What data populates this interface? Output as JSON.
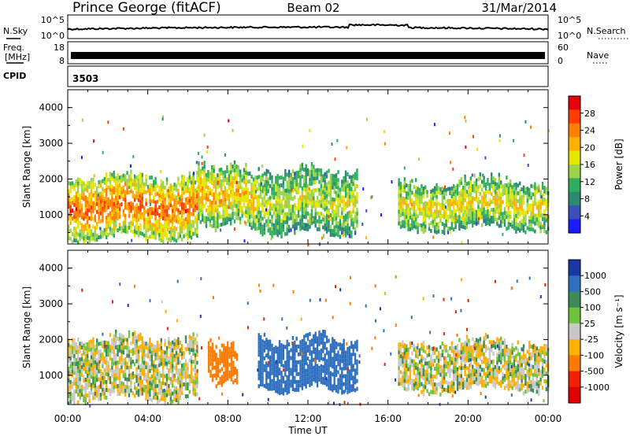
{
  "header": {
    "station": "Prince George (fitACF)",
    "beam": "Beam 02",
    "date": "31/Mar/2014"
  },
  "panels": {
    "nsky": {
      "label": "N.Sky",
      "right_label": "N.Search",
      "ticks_left": [
        "10^5",
        "10^0"
      ],
      "ticks_right": [
        "10^5",
        "10^0"
      ]
    },
    "freq": {
      "label_line1": "Freq.",
      "label_line2": "[MHz]",
      "right_label": "Nave",
      "ticks_left": [
        "18",
        "8"
      ],
      "ticks_right": [
        "60",
        "0"
      ]
    },
    "cpid": {
      "label": "CPID",
      "value": "3503"
    }
  },
  "colorbars": {
    "power": {
      "title": "Power [dB]",
      "ticks": [
        "28",
        "24",
        "20",
        "16",
        "12",
        "8",
        "4"
      ],
      "colors": [
        "#e8000b",
        "#ff3c00",
        "#ff7f00",
        "#ffb000",
        "#e6e600",
        "#9bd44a",
        "#2fae5e",
        "#2c8a72",
        "#3a4fbd",
        "#1b1bff"
      ]
    },
    "velocity": {
      "title": "Velocity [m s⁻¹]",
      "ticks": [
        "1000",
        "500",
        "100",
        "25",
        "-25",
        "-100",
        "-500",
        "-1000"
      ],
      "colors": [
        "#1a37a8",
        "#2e6fbf",
        "#3d8c57",
        "#6fc43b",
        "#c8c8c8",
        "#ffb000",
        "#ff7a00",
        "#f02000",
        "#e00000"
      ]
    }
  },
  "chart_data": [
    {
      "type": "heatmap",
      "title": "",
      "parameter": "Power",
      "units": "dB",
      "xlabel": "Time UT",
      "ylabel": "Slant Range [km]",
      "xlim": [
        "00:00",
        "24:00"
      ],
      "ylim": [
        180,
        4500
      ],
      "x_ticks": [
        "00:00",
        "04:00",
        "08:00",
        "12:00",
        "16:00",
        "20:00",
        "00:00"
      ],
      "y_ticks": [
        1000,
        2000,
        3000,
        4000
      ],
      "color_range": [
        0,
        30
      ],
      "echo_regions": [
        {
          "t_start": 0.0,
          "t_end": 6.5,
          "r_low": 450,
          "r_high": 2100,
          "power": 22
        },
        {
          "t_start": 6.5,
          "t_end": 9.5,
          "r_low": 800,
          "r_high": 2400,
          "power": 18
        },
        {
          "t_start": 9.5,
          "t_end": 14.5,
          "r_low": 600,
          "r_high": 2300,
          "power": 14
        },
        {
          "t_start": 16.5,
          "t_end": 24.0,
          "r_low": 700,
          "r_high": 2000,
          "power": 16
        }
      ]
    },
    {
      "type": "heatmap",
      "title": "",
      "parameter": "Velocity",
      "units": "m s-1",
      "xlabel": "Time UT",
      "ylabel": "Slant Range [km]",
      "xlim": [
        "00:00",
        "24:00"
      ],
      "ylim": [
        180,
        4500
      ],
      "x_ticks": [
        "00:00",
        "04:00",
        "08:00",
        "12:00",
        "16:00",
        "20:00",
        "00:00"
      ],
      "y_ticks": [
        1000,
        2000,
        3000,
        4000
      ],
      "color_range": [
        -1000,
        1000
      ],
      "echo_regions": [
        {
          "t_start": 0.0,
          "t_end": 6.5,
          "r_low": 450,
          "r_high": 2100,
          "velocity": 0
        },
        {
          "t_start": 7.0,
          "t_end": 8.5,
          "r_low": 900,
          "r_high": 1900,
          "velocity": -300
        },
        {
          "t_start": 9.5,
          "t_end": 14.5,
          "r_low": 700,
          "r_high": 2100,
          "velocity": 200
        },
        {
          "t_start": 16.5,
          "t_end": 24.0,
          "r_low": 700,
          "r_high": 2000,
          "velocity": 0
        }
      ]
    }
  ]
}
